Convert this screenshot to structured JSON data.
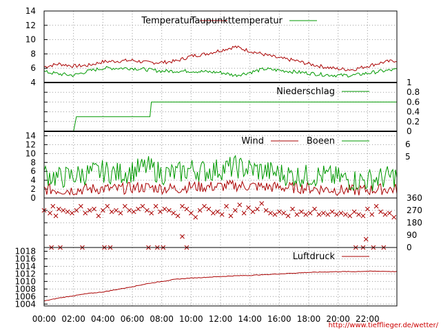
{
  "colors": {
    "red": "#aa0000",
    "green": "#009900",
    "frame": "#000000",
    "grid": "#999999"
  },
  "time_axis": {
    "labels": [
      "00:00",
      "02:00",
      "04:00",
      "06:00",
      "08:00",
      "10:00",
      "12:00",
      "14:00",
      "16:00",
      "18:00",
      "20:00",
      "22:00"
    ]
  },
  "credit": "http://www.tiefflieger.de/wetter/",
  "chart_data": [
    {
      "type": "line",
      "title": "",
      "x_range_hours": [
        0,
        24
      ],
      "ylim": [
        4,
        14
      ],
      "yticks": [
        "4",
        "6",
        "8",
        "10",
        "12",
        "14"
      ],
      "grid": true,
      "legend_position": "top",
      "x_hours": [
        0,
        1,
        2,
        3,
        4,
        5,
        6,
        7,
        8,
        9,
        10,
        11,
        12,
        13,
        14,
        15,
        16,
        17,
        18,
        19,
        20,
        21,
        22,
        23,
        24
      ],
      "series": [
        {
          "name": "Temperatur",
          "color": "#aa0000",
          "values": [
            6.2,
            6.6,
            6.3,
            6.4,
            6.9,
            7.0,
            7.1,
            6.8,
            6.8,
            7.0,
            7.7,
            8.0,
            8.5,
            9.0,
            8.4,
            7.9,
            7.4,
            7.1,
            6.6,
            6.2,
            5.9,
            5.8,
            6.3,
            6.8,
            7.1
          ]
        },
        {
          "name": "Taupunkttemperatur",
          "color": "#009900",
          "values": [
            5.5,
            5.2,
            5.0,
            5.6,
            6.0,
            6.0,
            6.0,
            5.8,
            5.6,
            5.6,
            5.6,
            5.5,
            5.4,
            5.0,
            5.4,
            5.9,
            5.7,
            5.5,
            5.3,
            5.1,
            5.0,
            5.0,
            5.3,
            5.6,
            5.8
          ]
        }
      ]
    },
    {
      "type": "line",
      "title": "",
      "x_range_hours": [
        0,
        24
      ],
      "ylim": [
        0,
        1
      ],
      "yticks": [
        "0",
        "0.2",
        "0.4",
        "0.6",
        "0.8",
        "1"
      ],
      "grid": true,
      "legend_position": "top-right",
      "x_hours": [
        0,
        2.0,
        2.2,
        7.2,
        7.3,
        24
      ],
      "series": [
        {
          "name": "Niederschlag",
          "color": "#009900",
          "values": [
            0,
            0,
            0.3,
            0.3,
            0.6,
            0.6
          ]
        }
      ]
    },
    {
      "type": "line",
      "title": "",
      "x_range_hours": [
        0,
        24
      ],
      "ylim": [
        0,
        15
      ],
      "yticks": [
        "0",
        "2",
        "4",
        "6",
        "8",
        "10",
        "12",
        "14"
      ],
      "right_ticks": [
        "5",
        "6"
      ],
      "grid": true,
      "legend_position": "top-right",
      "x_hours": [
        0,
        1,
        2,
        3,
        4,
        5,
        6,
        7,
        8,
        9,
        10,
        11,
        12,
        13,
        14,
        15,
        16,
        17,
        18,
        19,
        20,
        21,
        22,
        23,
        24
      ],
      "series": [
        {
          "name": "Wind",
          "color": "#aa0000",
          "values": [
            2.0,
            1.8,
            1.8,
            2.0,
            2.1,
            2.0,
            2.3,
            2.4,
            2.2,
            2.1,
            2.6,
            2.5,
            2.6,
            2.8,
            2.7,
            2.5,
            2.4,
            2.3,
            2.2,
            2.0,
            1.8,
            1.7,
            1.8,
            2.0,
            2.0
          ]
        },
        {
          "name": "Boeen",
          "color": "#009900",
          "values": [
            5.5,
            4.5,
            5.0,
            5.5,
            6.0,
            5.5,
            6.0,
            7.0,
            5.5,
            5.5,
            6.5,
            6.0,
            6.5,
            7.0,
            6.5,
            6.0,
            5.5,
            5.0,
            5.0,
            5.0,
            4.5,
            4.0,
            4.0,
            4.5,
            5.0
          ]
        }
      ]
    },
    {
      "type": "scatter",
      "title": "",
      "x_range_hours": [
        0,
        24
      ],
      "ylim": [
        0,
        360
      ],
      "yticks": [
        "0",
        "90",
        "180",
        "270",
        "360"
      ],
      "grid": true,
      "marker": "x",
      "color": "#aa0000",
      "x_hours": [
        0,
        0.4,
        0.6,
        0.8,
        1.0,
        1.3,
        1.6,
        1.9,
        2.2,
        2.5,
        2.8,
        3.1,
        3.4,
        3.7,
        4.0,
        4.3,
        4.6,
        4.9,
        5.2,
        5.5,
        5.8,
        6.1,
        6.4,
        6.7,
        7.0,
        7.3,
        7.6,
        7.9,
        8.2,
        8.5,
        8.8,
        9.1,
        9.4,
        9.7,
        10.0,
        10.3,
        10.6,
        10.9,
        11.2,
        11.5,
        11.8,
        12.1,
        12.4,
        12.7,
        13.0,
        13.3,
        13.6,
        13.9,
        14.2,
        14.5,
        14.8,
        15.1,
        15.4,
        15.7,
        16.0,
        16.3,
        16.6,
        16.9,
        17.2,
        17.5,
        17.8,
        18.1,
        18.4,
        18.7,
        19.0,
        19.3,
        19.6,
        19.9,
        20.2,
        20.5,
        20.8,
        21.1,
        21.4,
        21.7,
        22.0,
        22.3,
        22.6,
        22.9,
        23.2,
        23.5,
        23.8,
        0.5,
        1.1,
        2.6,
        4.1,
        4.5,
        7.1,
        7.7,
        8.1,
        9.7,
        21.2,
        21.7,
        22.4,
        23.1,
        9.4,
        21.9
      ],
      "values": [
        270,
        250,
        300,
        230,
        280,
        270,
        260,
        250,
        270,
        300,
        250,
        270,
        280,
        230,
        270,
        300,
        260,
        270,
        250,
        300,
        270,
        260,
        280,
        300,
        270,
        250,
        300,
        260,
        280,
        270,
        250,
        230,
        300,
        280,
        250,
        220,
        270,
        300,
        280,
        250,
        260,
        240,
        300,
        230,
        270,
        310,
        250,
        290,
        260,
        280,
        320,
        270,
        250,
        240,
        260,
        250,
        230,
        280,
        240,
        260,
        240,
        250,
        280,
        240,
        250,
        240,
        260,
        240,
        250,
        240,
        230,
        260,
        240,
        230,
        280,
        240,
        300,
        260,
        240,
        250,
        220,
        0,
        0,
        0,
        0,
        0,
        0,
        0,
        0,
        0,
        0,
        0,
        0,
        0,
        80,
        60
      ]
    },
    {
      "type": "line",
      "title": "",
      "x_range_hours": [
        0,
        24
      ],
      "ylim": [
        1003.5,
        1019
      ],
      "yticks": [
        "1004",
        "1006",
        "1008",
        "1010",
        "1012",
        "1014",
        "1016",
        "1018"
      ],
      "grid": true,
      "legend_position": "top-right",
      "x_hours": [
        0,
        1,
        2,
        3,
        4,
        5,
        6,
        7,
        8,
        9,
        10,
        11,
        12,
        13,
        14,
        15,
        16,
        17,
        18,
        19,
        20,
        21,
        22,
        23,
        24
      ],
      "series": [
        {
          "name": "Luftdruck",
          "color": "#aa0000",
          "values": [
            1004.8,
            1005.6,
            1006.2,
            1006.8,
            1007.2,
            1007.9,
            1008.6,
            1009.4,
            1010.0,
            1010.6,
            1010.9,
            1011.1,
            1011.3,
            1011.5,
            1011.6,
            1011.8,
            1012.0,
            1012.2,
            1012.4,
            1012.5,
            1012.6,
            1012.6,
            1012.7,
            1012.7,
            1012.6
          ]
        }
      ]
    }
  ]
}
